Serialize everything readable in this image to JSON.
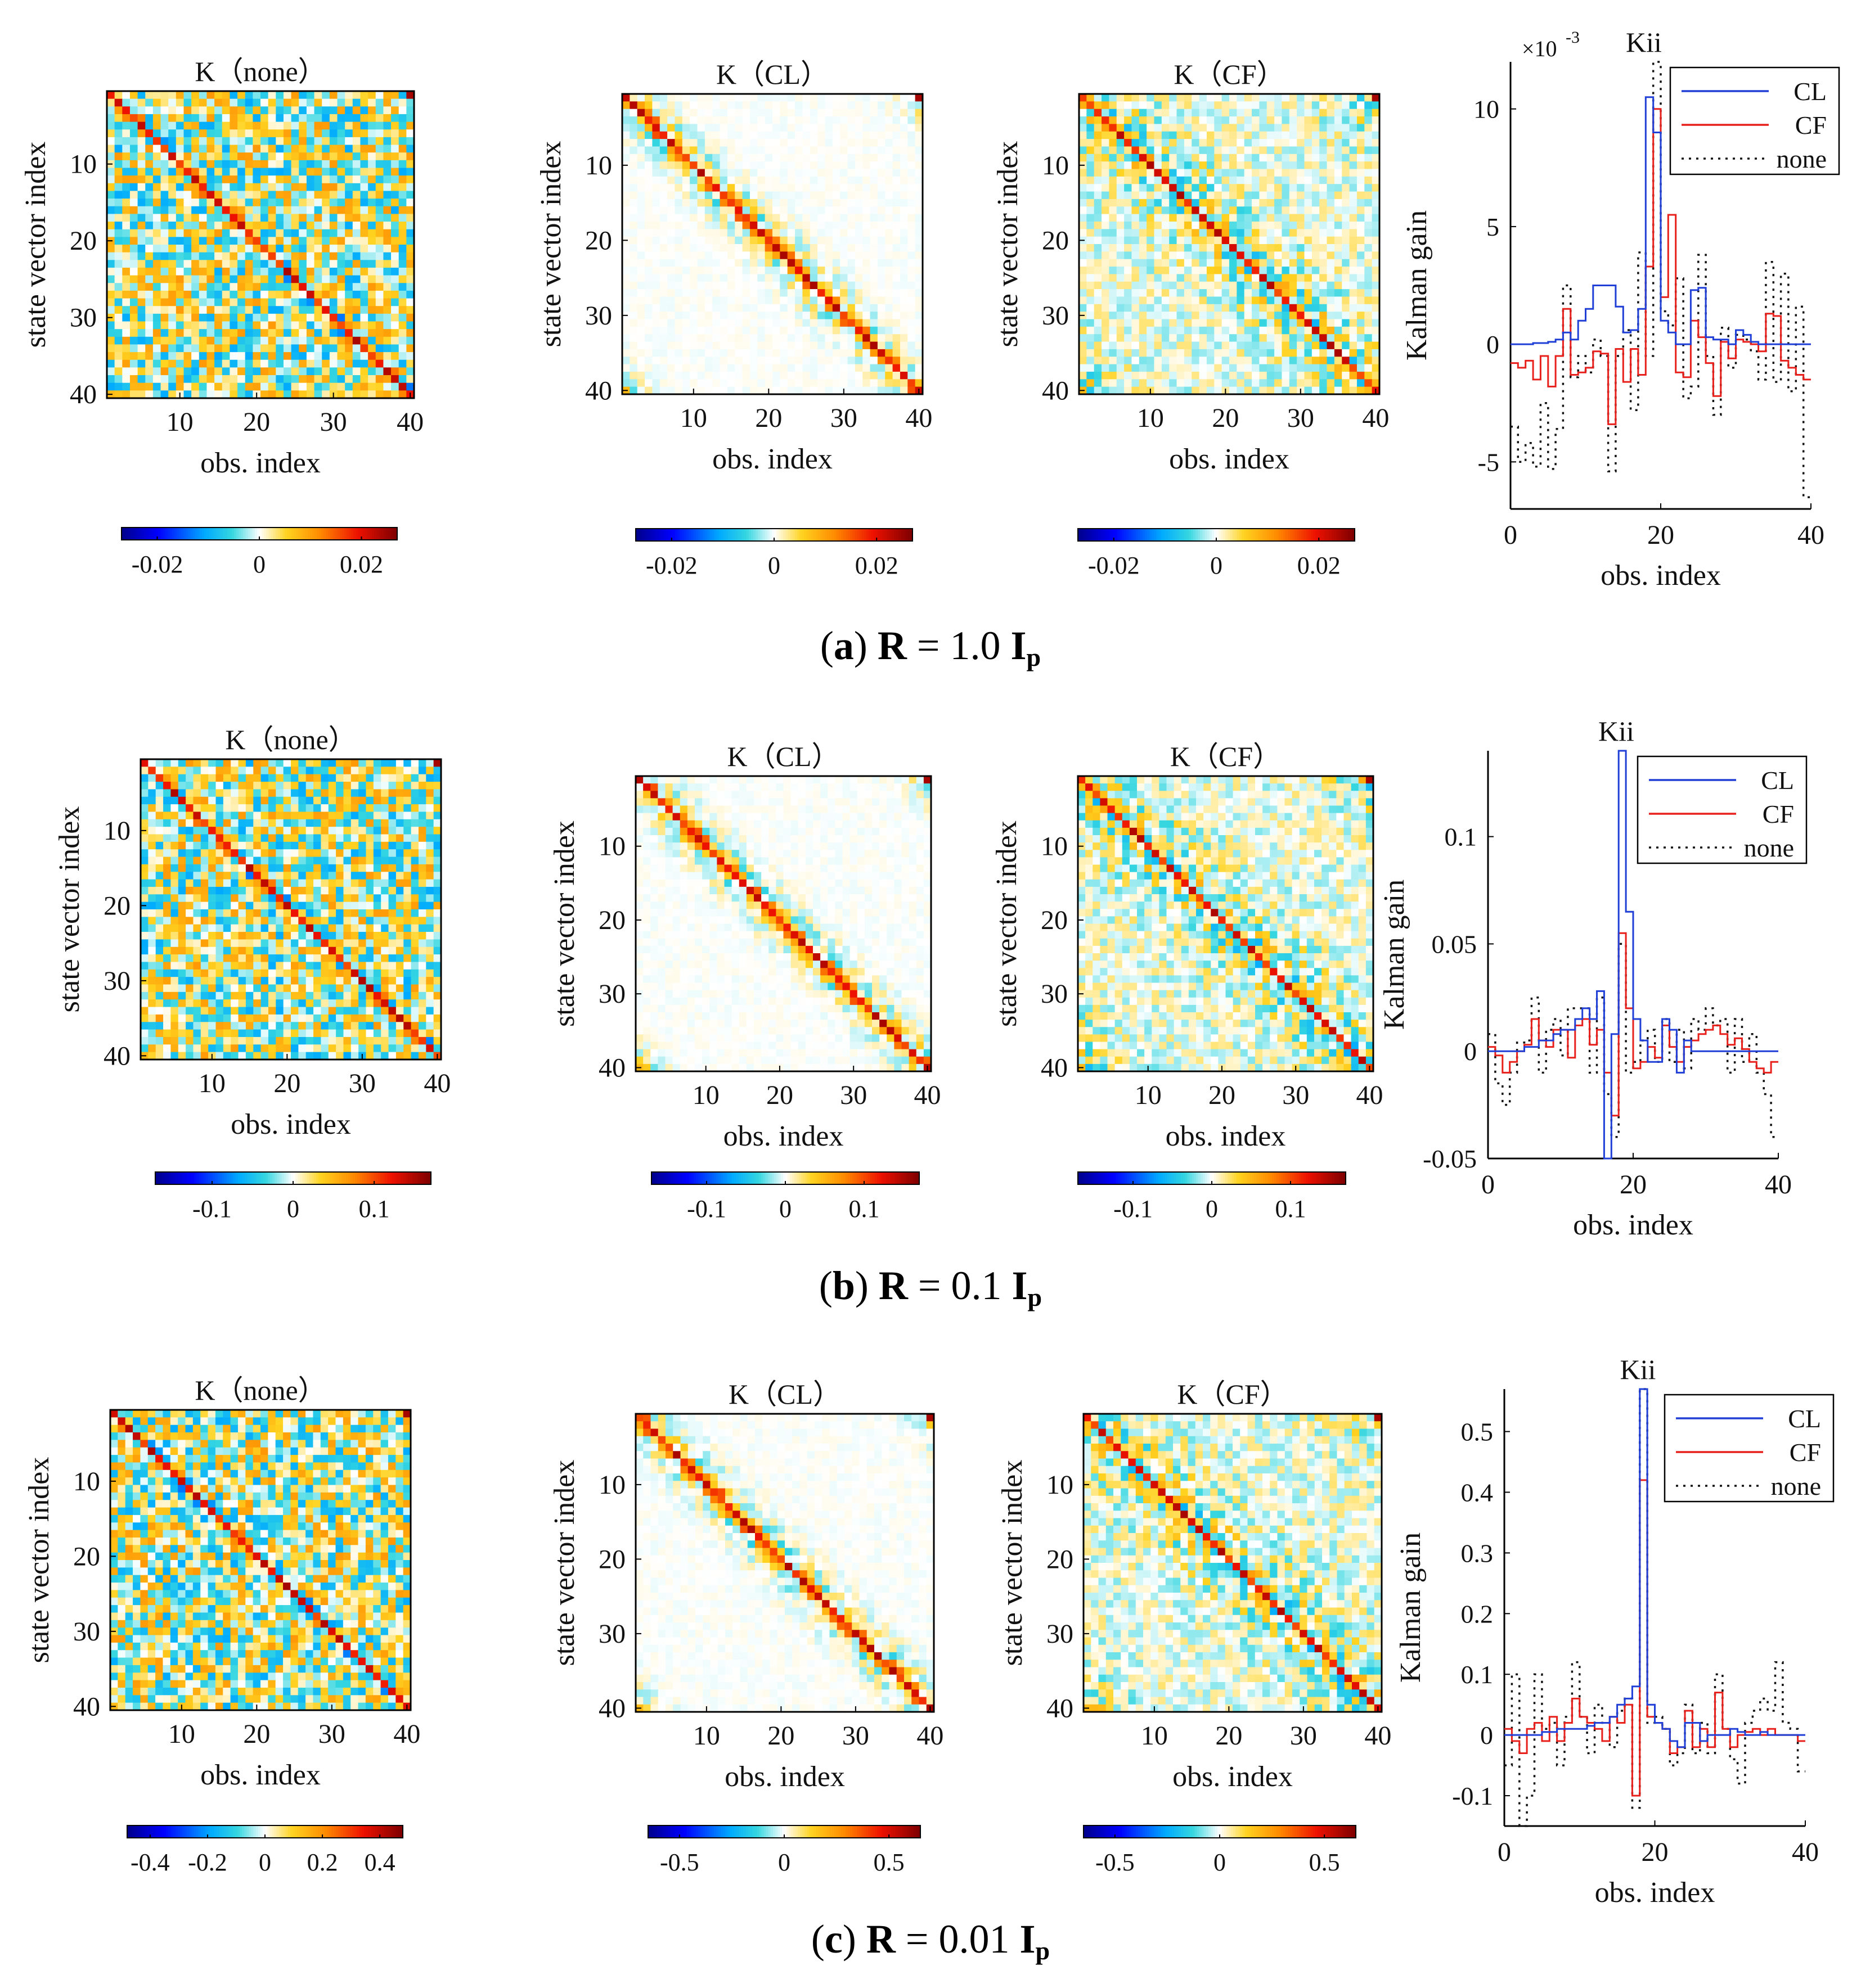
{
  "colors": {
    "CL": "#1f3fd6",
    "CF": "#e8201c",
    "none": "#111111",
    "colormap": [
      "#00008f",
      "#0000ff",
      "#00aaff",
      "#35d6e0",
      "#ffffff",
      "#ffd320",
      "#ff8c00",
      "#ee1100",
      "#800000"
    ]
  },
  "chart_data": [
    {
      "id": "a",
      "type": "heatmap",
      "caption": {
        "paren_open": "(",
        "letter": "a",
        "paren_close": ")",
        "R": "R",
        "eq": " = 1.0 ",
        "I": "I",
        "sub": "p"
      },
      "heatmap_xlabel": "obs. index",
      "heatmap_ylabel": "state vector index",
      "heatmap_ticks": [
        10,
        20,
        30,
        40
      ],
      "heatmap_size": 40,
      "colorbar_range": [
        -0.027,
        0.027
      ],
      "colorbar_ticks": [
        "-0.02",
        "0",
        "0.02"
      ],
      "colorbar_tick_values": [
        -0.02,
        0,
        0.02
      ],
      "heatmaps": [
        {
          "title": "K（none）",
          "mode": "none"
        },
        {
          "title": "K（CL）",
          "mode": "CL"
        },
        {
          "title": "K（CF）",
          "mode": "CF"
        }
      ],
      "line": {
        "type": "line",
        "title": "Kii",
        "ylabel": "Kalman gain",
        "xlabel": "obs. index",
        "multiplier": "×10",
        "multiplier_exp": "-3",
        "xlim": [
          0,
          40
        ],
        "ylim": [
          -7,
          12
        ],
        "xticks": [
          0,
          20,
          40
        ],
        "yticks": [
          -5,
          0,
          5,
          10
        ],
        "ytick_labels": [
          "-5",
          "0",
          "5",
          "10"
        ],
        "legend": [
          "CL",
          "CF",
          "none"
        ],
        "series": [
          {
            "name": "CL",
            "values": [
              0,
              0,
              0,
              0.05,
              0.05,
              0.1,
              0.2,
              0.5,
              0.2,
              1,
              1.5,
              2.5,
              2.5,
              2.5,
              1.6,
              0.5,
              0.6,
              1.5,
              10.5,
              9,
              1,
              0.5,
              0,
              0,
              2.3,
              2.4,
              0.3,
              0.2,
              0.2,
              0,
              0.6,
              0.4,
              0.1,
              0,
              0,
              0,
              0,
              0,
              0,
              0
            ]
          },
          {
            "name": "CF",
            "values": [
              -0.8,
              -1,
              -0.7,
              -1.5,
              -0.5,
              -1.8,
              -0.5,
              1.5,
              -1.3,
              -1.2,
              -1,
              -0.3,
              -0.4,
              -3.4,
              -0.2,
              -1.6,
              -0.2,
              -1.3,
              3.3,
              10,
              2,
              5.5,
              -1.2,
              -1.4,
              1,
              0.3,
              -0.8,
              -2.2,
              0.1,
              -0.6,
              0.2,
              0.1,
              0,
              -0.3,
              1.3,
              1.2,
              -0.7,
              -1,
              -1.3,
              -1.5
            ]
          },
          {
            "name": "none",
            "values": [
              -3.5,
              -5,
              -4.2,
              -5.2,
              -2.5,
              -5.3,
              -3.6,
              2.5,
              -1.4,
              -0.5,
              -1.2,
              0.2,
              -0.5,
              -5.4,
              -0.5,
              0.6,
              -2.8,
              3.9,
              -0.5,
              12,
              1.4,
              0.8,
              2.8,
              -2.3,
              -1.8,
              3.8,
              -0.5,
              -3,
              0.7,
              -1,
              0.4,
              0.2,
              -0.3,
              -1.5,
              3.5,
              -1.6,
              3,
              -2,
              1.6,
              -6.5
            ]
          }
        ]
      }
    },
    {
      "id": "b",
      "type": "heatmap",
      "caption": {
        "paren_open": "(",
        "letter": "b",
        "paren_close": ")",
        "R": "R",
        "eq": " = 0.1 ",
        "I": "I",
        "sub": "p"
      },
      "heatmap_xlabel": "obs. index",
      "heatmap_ylabel": "state vector index",
      "heatmap_ticks": [
        10,
        20,
        30,
        40
      ],
      "heatmap_size": 40,
      "colorbar_range": [
        -0.17,
        0.17
      ],
      "colorbar_ticks": [
        "-0.1",
        "0",
        "0.1"
      ],
      "colorbar_tick_values": [
        -0.1,
        0,
        0.1
      ],
      "heatmaps": [
        {
          "title": "K（none）",
          "mode": "none"
        },
        {
          "title": "K（CL）",
          "mode": "CL"
        },
        {
          "title": "K（CF）",
          "mode": "CF"
        }
      ],
      "line": {
        "type": "line",
        "title": "Kii",
        "ylabel": "Kalman gain",
        "xlabel": "obs. index",
        "multiplier": "",
        "multiplier_exp": "",
        "xlim": [
          0,
          40
        ],
        "ylim": [
          -0.05,
          0.14
        ],
        "xticks": [
          0,
          20,
          40
        ],
        "yticks": [
          -0.05,
          0,
          0.05,
          0.1
        ],
        "ytick_labels": [
          "-0.05",
          "0",
          "0.05",
          "0.1"
        ],
        "legend": [
          "CL",
          "CF",
          "none"
        ],
        "series": [
          {
            "name": "CL",
            "values": [
              0,
              0,
              0,
              0,
              0,
              0.002,
              0.002,
              0.005,
              0.005,
              0.008,
              0.01,
              0.01,
              0.015,
              0.02,
              0.015,
              0.028,
              -0.05,
              0.008,
              0.14,
              0.065,
              0.015,
              0.005,
              -0.005,
              -0.005,
              0.015,
              0.01,
              -0.01,
              0.005,
              0,
              0,
              0,
              0,
              0,
              0,
              0,
              0,
              0,
              0,
              0,
              0
            ]
          },
          {
            "name": "CF",
            "values": [
              0.002,
              -0.002,
              -0.01,
              -0.005,
              0,
              0.003,
              0.015,
              0.005,
              0.002,
              0.01,
              0.01,
              -0.003,
              0.012,
              0.015,
              0.003,
              0.01,
              -0.01,
              -0.03,
              0.055,
              0.02,
              -0.008,
              -0.005,
              0.002,
              -0.003,
              0.012,
              0.002,
              -0.005,
              0.002,
              0.005,
              0.008,
              0.01,
              0.012,
              0.008,
              0.003,
              0.006,
              0.001,
              -0.005,
              -0.008,
              -0.01,
              -0.005
            ]
          },
          {
            "name": "none",
            "values": [
              0.008,
              -0.015,
              -0.025,
              -0.01,
              0.004,
              0.005,
              0.025,
              -0.01,
              0.01,
              0.015,
              -0.002,
              0.02,
              0.02,
              0.02,
              -0.01,
              0.025,
              -0.02,
              -0.04,
              0.05,
              -0.01,
              -0.005,
              0.005,
              0.01,
              -0.005,
              0.015,
              -0.005,
              0.01,
              -0.008,
              0.015,
              0.01,
              0.02,
              0.012,
              0.015,
              -0.01,
              0.015,
              -0.005,
              0.008,
              -0.01,
              -0.02,
              -0.04
            ]
          }
        ]
      }
    },
    {
      "id": "c",
      "type": "heatmap",
      "caption": {
        "paren_open": "(",
        "letter": "c",
        "paren_close": ")",
        "R": "R",
        "eq": " = 0.01 ",
        "I": "I",
        "sub": "p"
      },
      "heatmap_xlabel": "obs. index",
      "heatmap_ylabel": "state vector index",
      "heatmap_ticks": [
        10,
        20,
        30,
        40
      ],
      "heatmap_size": 40,
      "colorbar_range": [
        -0.48,
        0.48
      ],
      "colorbar_ticks": [
        "-0.4",
        "-0.2",
        "0",
        "0.2",
        "0.4"
      ],
      "colorbar_tick_values": [
        -0.4,
        -0.2,
        0,
        0.2,
        0.4
      ],
      "colorbar_range_2": [
        -0.65,
        0.65
      ],
      "colorbar_ticks_2": [
        "-0.5",
        "0",
        "0.5"
      ],
      "colorbar_tick_values_2": [
        -0.5,
        0,
        0.5
      ],
      "heatmaps": [
        {
          "title": "K（none）",
          "mode": "none"
        },
        {
          "title": "K（CL）",
          "mode": "CL"
        },
        {
          "title": "K（CF）",
          "mode": "CF"
        }
      ],
      "line": {
        "type": "line",
        "title": "Kii",
        "ylabel": "Kalman gain",
        "xlabel": "obs. index",
        "multiplier": "",
        "multiplier_exp": "",
        "xlim": [
          0,
          40
        ],
        "ylim": [
          -0.15,
          0.57
        ],
        "xticks": [
          0,
          20,
          40
        ],
        "yticks": [
          -0.1,
          0,
          0.1,
          0.2,
          0.3,
          0.4,
          0.5
        ],
        "ytick_labels": [
          "-0.1",
          "0",
          "0.1",
          "0.2",
          "0.3",
          "0.4",
          "0.5"
        ],
        "legend": [
          "CL",
          "CF",
          "none"
        ],
        "series": [
          {
            "name": "CL",
            "values": [
              0,
              0,
              0,
              0,
              0,
              0.005,
              0.005,
              0.01,
              0.01,
              0.01,
              0.01,
              0.015,
              0.02,
              0.02,
              0.03,
              0.05,
              0.06,
              0.08,
              0.57,
              0.05,
              0.02,
              0.01,
              -0.01,
              -0.02,
              0.02,
              0.02,
              -0.01,
              0,
              0,
              0,
              0.01,
              0.005,
              0,
              0,
              0.005,
              0,
              0,
              0,
              0,
              0
            ]
          },
          {
            "name": "CF",
            "values": [
              0.01,
              -0.01,
              -0.03,
              0.01,
              0.02,
              -0.01,
              0.03,
              -0.01,
              0.02,
              0.06,
              0.03,
              0.02,
              0.01,
              -0.01,
              0.03,
              0.02,
              0.05,
              -0.1,
              0.42,
              0.03,
              0.02,
              0.01,
              -0.03,
              -0.02,
              0.04,
              -0.02,
              0.01,
              -0.02,
              0.07,
              0.01,
              -0.02,
              0,
              0.005,
              0.01,
              0,
              0.01,
              0,
              0,
              0,
              -0.01
            ]
          },
          {
            "name": "none",
            "values": [
              -0.05,
              0.1,
              -0.15,
              -0.1,
              0.1,
              0.01,
              0.02,
              -0.05,
              0.03,
              0.12,
              0.03,
              -0.03,
              0.05,
              0.02,
              -0.02,
              0.04,
              0.06,
              -0.12,
              0.57,
              0.02,
              0.03,
              0.01,
              -0.05,
              -0.03,
              0.05,
              -0.03,
              0.02,
              -0.03,
              0.1,
              0.01,
              -0.04,
              -0.08,
              0.02,
              0.04,
              0.06,
              0.04,
              0.12,
              0.02,
              0.01,
              -0.06
            ]
          }
        ]
      }
    }
  ]
}
